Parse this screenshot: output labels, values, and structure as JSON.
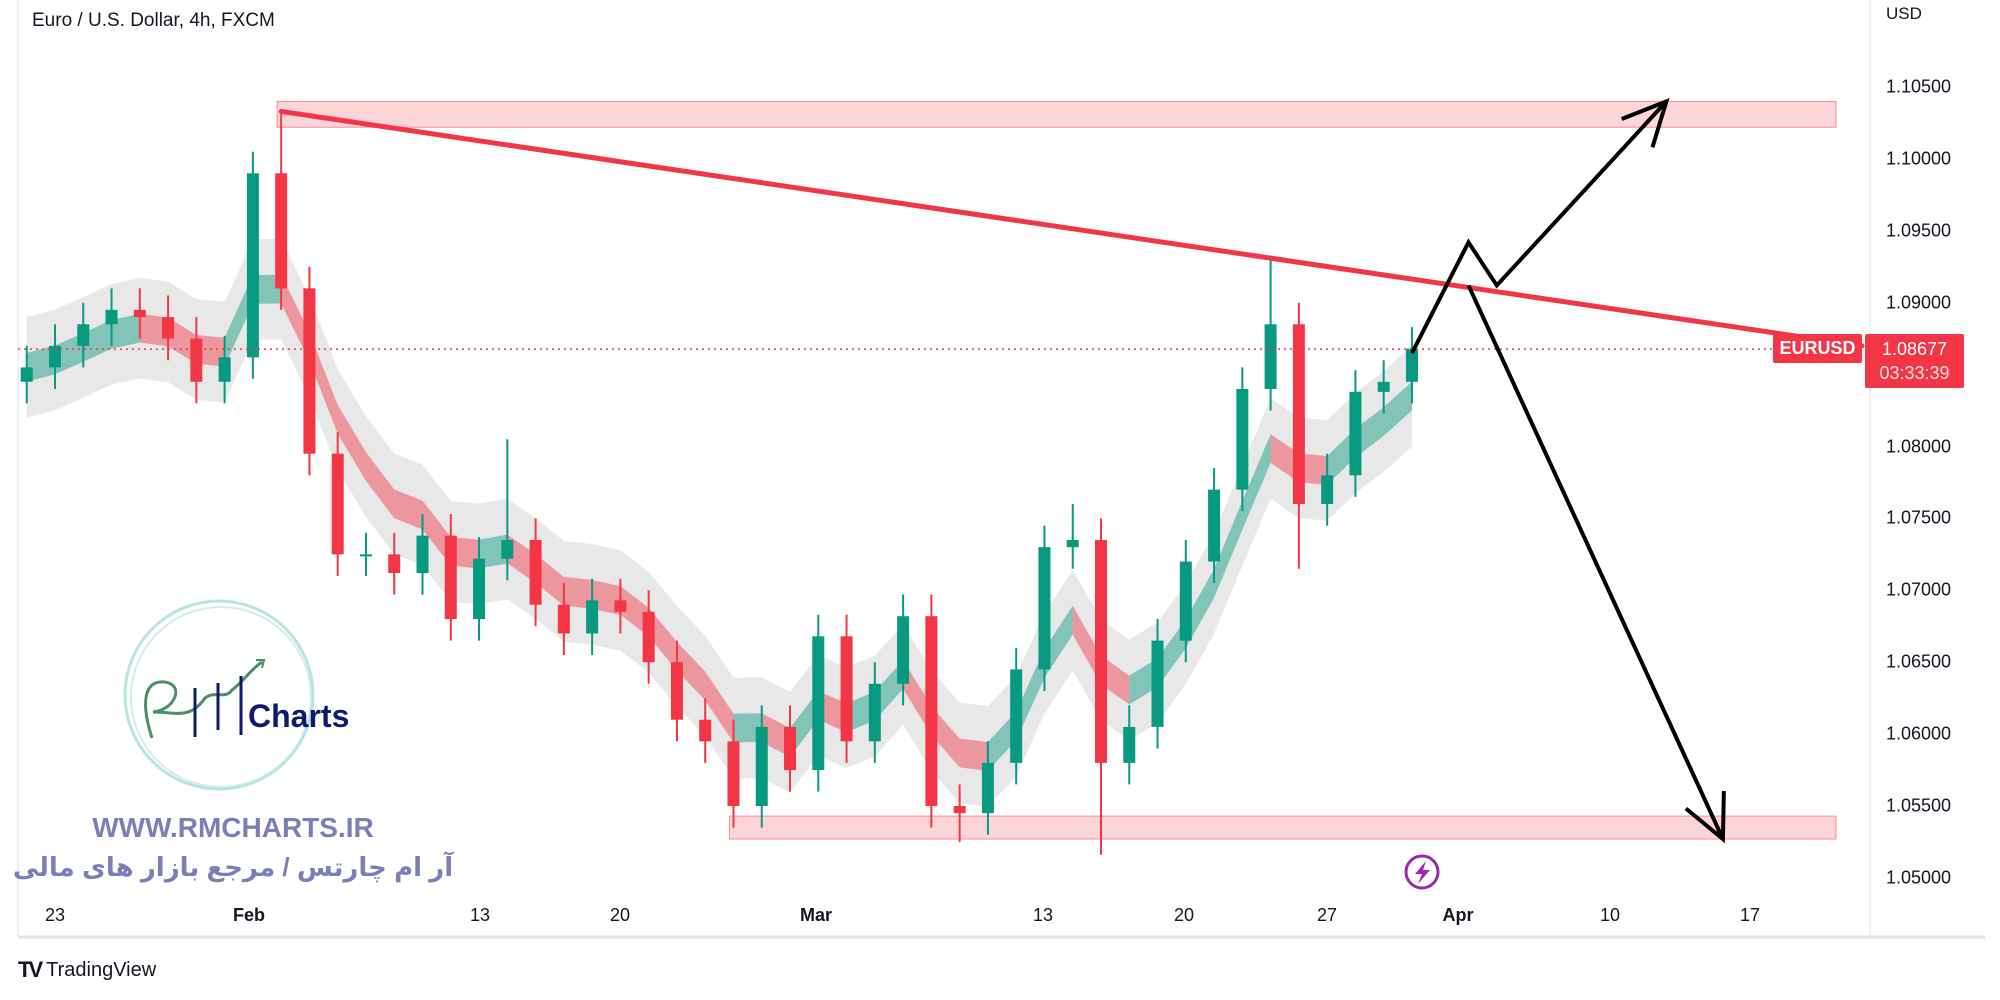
{
  "header": {
    "title": "Euro / U.S. Dollar, 4h, FXCM",
    "currency": "USD"
  },
  "price_scale": {
    "labels": [
      "1.10500",
      "1.10000",
      "1.09500",
      "1.09000",
      "1.08000",
      "1.07500",
      "1.07000",
      "1.06500",
      "1.06000",
      "1.05500",
      "1.05000"
    ]
  },
  "time_scale": {
    "labels": [
      {
        "text": "23",
        "bold": false
      },
      {
        "text": "Feb",
        "bold": true
      },
      {
        "text": "13",
        "bold": false
      },
      {
        "text": "20",
        "bold": false
      },
      {
        "text": "Mar",
        "bold": true
      },
      {
        "text": "13",
        "bold": false
      },
      {
        "text": "20",
        "bold": false
      },
      {
        "text": "27",
        "bold": false
      },
      {
        "text": "Apr",
        "bold": true
      },
      {
        "text": "10",
        "bold": false
      },
      {
        "text": "17",
        "bold": false
      }
    ]
  },
  "last_price": {
    "symbol": "EURUSD",
    "price": "1.08677",
    "countdown": "03:33:39",
    "value": 1.08677
  },
  "colors": {
    "up": "#089981",
    "down": "#f23645",
    "zone_fill": "#fcd5d8",
    "trendline": "#f23645",
    "arrows": "#000000",
    "logo_navy": "#0d1b6e",
    "logo_green": "#4a8f6a",
    "watermark": "#7b7fb8",
    "alert_icon": "#9c27b0"
  },
  "chart_data": {
    "type": "candlestick",
    "symbol": "EURUSD",
    "timeframe": "4h",
    "source": "FXCM",
    "ylim": [
      1.0485,
      1.1075
    ],
    "bars": [
      {
        "d": "Jan 20",
        "c": 1.0855
      },
      {
        "d": "Jan 23",
        "c": 1.087
      },
      {
        "d": "Jan 24",
        "c": 1.0885
      },
      {
        "d": "Jan 25",
        "c": 1.0895
      },
      {
        "d": "Jan 26",
        "c": 1.089
      },
      {
        "d": "Jan 27",
        "c": 1.0875
      },
      {
        "d": "Jan 30",
        "c": 1.0845
      },
      {
        "d": "Jan 31",
        "c": 1.0862
      },
      {
        "d": "Feb 1",
        "c": 1.099
      },
      {
        "d": "Feb 2",
        "c": 1.091,
        "h": 1.1033
      },
      {
        "d": "Feb 3",
        "c": 1.0795
      },
      {
        "d": "Feb 6",
        "c": 1.0725
      },
      {
        "d": "Feb 7",
        "c": 1.0725
      },
      {
        "d": "Feb 8",
        "c": 1.0712
      },
      {
        "d": "Feb 9",
        "c": 1.0738
      },
      {
        "d": "Feb 10",
        "c": 1.068
      },
      {
        "d": "Feb 13",
        "c": 1.0722
      },
      {
        "d": "Feb 14",
        "c": 1.0735,
        "h": 1.0805
      },
      {
        "d": "Feb 15",
        "c": 1.069
      },
      {
        "d": "Feb 16",
        "c": 1.067
      },
      {
        "d": "Feb 17",
        "c": 1.0693
      },
      {
        "d": "Feb 20",
        "c": 1.0685
      },
      {
        "d": "Feb 21",
        "c": 1.065
      },
      {
        "d": "Feb 22",
        "c": 1.061
      },
      {
        "d": "Feb 23",
        "c": 1.0595
      },
      {
        "d": "Feb 24",
        "c": 1.055
      },
      {
        "d": "Feb 27",
        "c": 1.0605,
        "l": 1.0535
      },
      {
        "d": "Feb 28",
        "c": 1.0575
      },
      {
        "d": "Mar 1",
        "c": 1.0668
      },
      {
        "d": "Mar 2",
        "c": 1.0595
      },
      {
        "d": "Mar 3",
        "c": 1.0635
      },
      {
        "d": "Mar 6",
        "c": 1.0682
      },
      {
        "d": "Mar 7",
        "c": 1.055
      },
      {
        "d": "Mar 8",
        "c": 1.0545,
        "l": 1.0525
      },
      {
        "d": "Mar 9",
        "c": 1.058
      },
      {
        "d": "Mar 10",
        "c": 1.0645
      },
      {
        "d": "Mar 13",
        "c": 1.073
      },
      {
        "d": "Mar 14",
        "c": 1.0735,
        "h": 1.076
      },
      {
        "d": "Mar 15",
        "c": 1.058,
        "l": 1.0516
      },
      {
        "d": "Mar 16",
        "c": 1.0605
      },
      {
        "d": "Mar 17",
        "c": 1.0665
      },
      {
        "d": "Mar 20",
        "c": 1.072
      },
      {
        "d": "Mar 21",
        "c": 1.077
      },
      {
        "d": "Mar 22",
        "c": 1.084
      },
      {
        "d": "Mar 23",
        "c": 1.0885,
        "h": 1.093
      },
      {
        "d": "Mar 24",
        "c": 1.076,
        "l": 1.0715
      },
      {
        "d": "Mar 27",
        "c": 1.078
      },
      {
        "d": "Mar 28",
        "c": 1.0838
      },
      {
        "d": "Mar 29",
        "c": 1.0845
      },
      {
        "d": "Mar 30",
        "c": 1.0868
      }
    ],
    "drawings": {
      "resistance_zone": {
        "from": "Feb 2",
        "to": "Apr 20",
        "top": 1.104,
        "bottom": 1.1022
      },
      "support_zone": {
        "from": "Feb 24",
        "to": "Apr 20",
        "top": 1.0543,
        "bottom": 1.0527
      },
      "trendline": {
        "from": {
          "d": "Feb 2",
          "p": 1.1033
        },
        "to": {
          "d": "Apr 20",
          "p": 1.087
        }
      },
      "bullish_path": [
        {
          "d": "Mar 30",
          "p": 1.0865
        },
        {
          "d": "Apr 3",
          "p": 1.0942
        },
        {
          "d": "Apr 4",
          "p": 1.0912
        },
        {
          "d": "Apr 12",
          "p": 1.104
        }
      ],
      "bearish_path": [
        {
          "d": "Apr 3",
          "p": 1.0912
        },
        {
          "d": "Apr 14",
          "p": 1.0527
        }
      ]
    }
  },
  "watermark": {
    "brand": "Charts",
    "website": "WWW.RMCHARTS.IR",
    "tagline": "آر ام چارتس / مرجع بازار های مالی"
  },
  "footer": {
    "logo": "TV",
    "brand": "TradingView"
  }
}
